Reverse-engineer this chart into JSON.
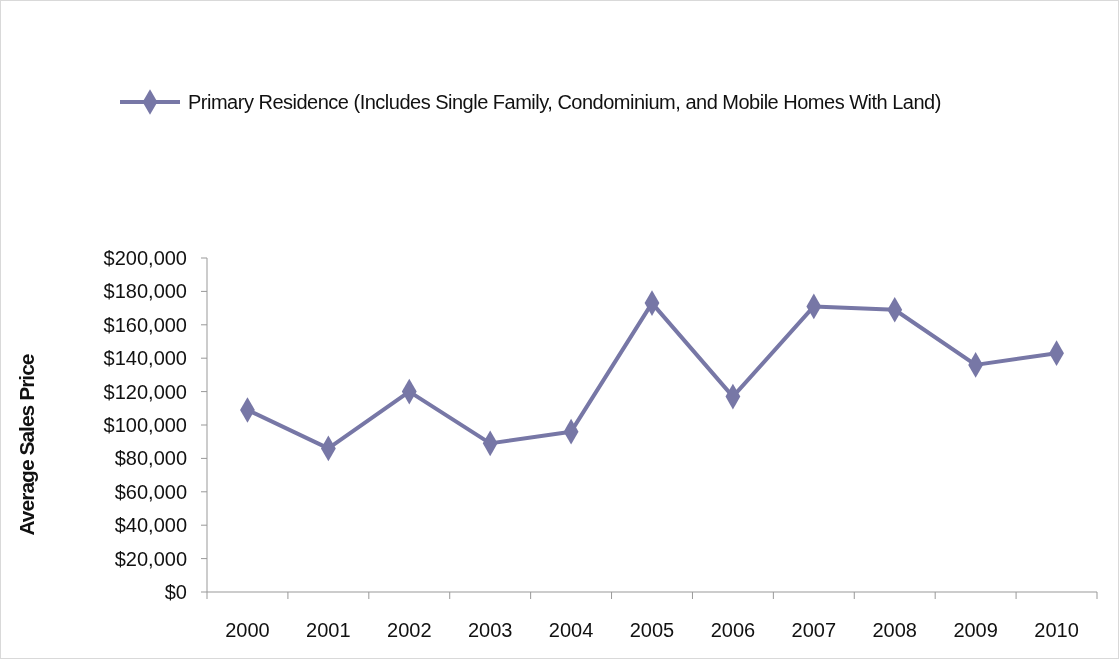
{
  "chart_data": {
    "type": "line",
    "ylabel": "Average Sales Price",
    "categories": [
      "2000",
      "2001",
      "2002",
      "2003",
      "2004",
      "2005",
      "2006",
      "2007",
      "2008",
      "2009",
      "2010"
    ],
    "series": [
      {
        "name": "Primary Residence (Includes Single Family, Condominium, and Mobile Homes With Land)",
        "color": "#7777a6",
        "values": [
          109000,
          86000,
          120000,
          89000,
          96000,
          173000,
          117000,
          171000,
          169000,
          136000,
          143000
        ]
      }
    ],
    "ylim": [
      0,
      200000
    ],
    "yticks": [
      {
        "value": 0,
        "label": "$0"
      },
      {
        "value": 20000,
        "label": "$20,000"
      },
      {
        "value": 40000,
        "label": "$40,000"
      },
      {
        "value": 60000,
        "label": "$60,000"
      },
      {
        "value": 80000,
        "label": "$80,000"
      },
      {
        "value": 100000,
        "label": "$100,000"
      },
      {
        "value": 120000,
        "label": "$120,000"
      },
      {
        "value": 140000,
        "label": "$140,000"
      },
      {
        "value": 160000,
        "label": "$160,000"
      },
      {
        "value": 180000,
        "label": "$180,000"
      },
      {
        "value": 200000,
        "label": "$200,000"
      }
    ],
    "legend": "top",
    "marker": "diamond",
    "line_style": "solid",
    "grid": false
  }
}
